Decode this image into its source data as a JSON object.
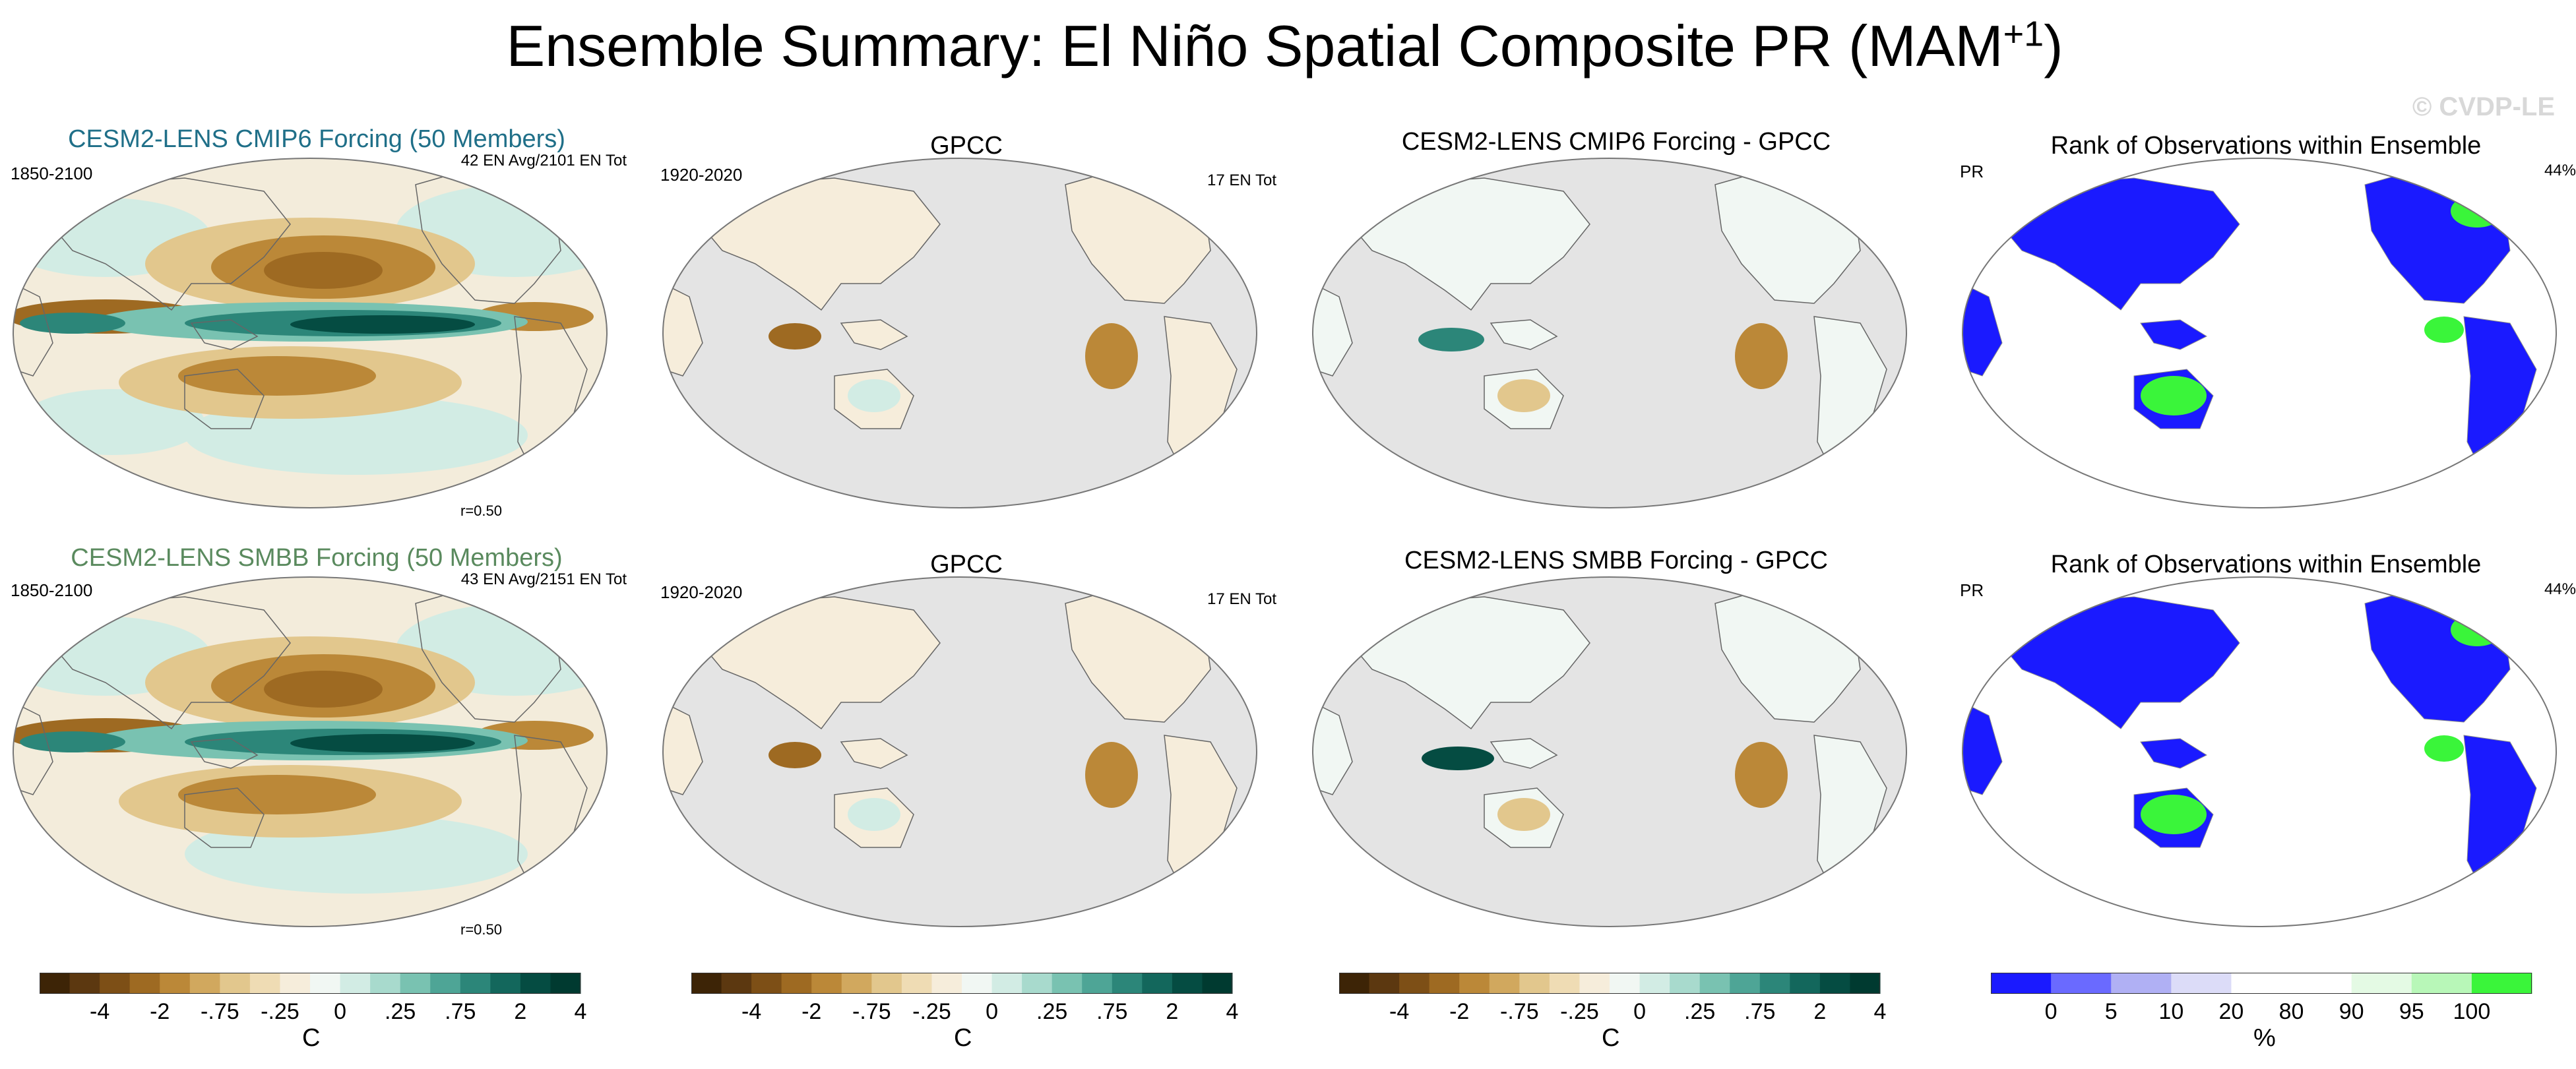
{
  "page_title": "Ensemble Summary: El Niño Spatial Composite PR (MAM",
  "title_superscript": "+1",
  "title_close": ")",
  "watermark": "© CVDP-LE",
  "panels": [
    {
      "title": "CESM2-LENS CMIP6 Forcing (50 Members)",
      "title_color": "#1f6f88",
      "left_label": "1850-2100",
      "right_label": "42 EN Avg/2101 EN Tot",
      "corr": "r=0.50"
    },
    {
      "title": "GPCC",
      "title_color": "#000000",
      "left_label": "1920-2020",
      "right_label": "17 EN Tot"
    },
    {
      "title": "CESM2-LENS CMIP6 Forcing - GPCC",
      "title_color": "#000000",
      "left_label": "",
      "right_label": ""
    },
    {
      "title": "Rank of Observations within Ensemble",
      "title_color": "#000000",
      "left_label": "PR",
      "right_label": "44%"
    },
    {
      "title": "CESM2-LENS SMBB Forcing (50 Members)",
      "title_color": "#5a8a5e",
      "left_label": "1850-2100",
      "right_label": "43 EN Avg/2151 EN Tot",
      "corr": "r=0.50"
    },
    {
      "title": "GPCC",
      "title_color": "#000000",
      "left_label": "1920-2020",
      "right_label": "17 EN Tot"
    },
    {
      "title": "CESM2-LENS SMBB Forcing - GPCC",
      "title_color": "#000000",
      "left_label": "",
      "right_label": ""
    },
    {
      "title": "Rank of Observations within Ensemble",
      "title_color": "#000000",
      "left_label": "PR",
      "right_label": "44%"
    }
  ],
  "colorbars": [
    {
      "unit": "C",
      "ticks": [
        "-4",
        "-2",
        "-.75",
        "-.25",
        "0",
        ".25",
        ".75",
        "2",
        "4"
      ],
      "colors": [
        "#3d2406",
        "#5c3810",
        "#7d4f16",
        "#9e6a22",
        "#bb8838",
        "#d1a85e",
        "#e2c78d",
        "#efdcb4",
        "#f6eddb",
        "#f1f7f3",
        "#d2ece4",
        "#a8dacd",
        "#79c2b1",
        "#4ea596",
        "#2c8679",
        "#13675c",
        "#054c42",
        "#003a30"
      ]
    },
    {
      "unit": "C",
      "ticks": [
        "-4",
        "-2",
        "-.75",
        "-.25",
        "0",
        ".25",
        ".75",
        "2",
        "4"
      ],
      "colors": [
        "#3d2406",
        "#5c3810",
        "#7d4f16",
        "#9e6a22",
        "#bb8838",
        "#d1a85e",
        "#e2c78d",
        "#efdcb4",
        "#f6eddb",
        "#f1f7f3",
        "#d2ece4",
        "#a8dacd",
        "#79c2b1",
        "#4ea596",
        "#2c8679",
        "#13675c",
        "#054c42",
        "#003a30"
      ]
    },
    {
      "unit": "C",
      "ticks": [
        "-4",
        "-2",
        "-.75",
        "-.25",
        "0",
        ".25",
        ".75",
        "2",
        "4"
      ],
      "colors": [
        "#3d2406",
        "#5c3810",
        "#7d4f16",
        "#9e6a22",
        "#bb8838",
        "#d1a85e",
        "#e2c78d",
        "#efdcb4",
        "#f6eddb",
        "#f1f7f3",
        "#d2ece4",
        "#a8dacd",
        "#79c2b1",
        "#4ea596",
        "#2c8679",
        "#13675c",
        "#054c42",
        "#003a30"
      ]
    },
    {
      "unit": "%",
      "ticks": [
        "0",
        "5",
        "10",
        "20",
        "80",
        "90",
        "95",
        "100"
      ],
      "colors": [
        "#1a1aff",
        "#6a6aff",
        "#b0b0f4",
        "#dcdcf8",
        "#ffffff",
        "#ffffff",
        "#e4fae4",
        "#b8f7b8",
        "#3af53a"
      ]
    }
  ],
  "chart_data": [
    {
      "type": "heatmap",
      "title": "CESM2-LENS CMIP6 Forcing (50 Members)",
      "period": "1850-2100",
      "events": "42 EN Avg/2101 EN Tot",
      "pattern_correlation": 0.5,
      "unit": "C",
      "levels": [
        -4,
        -2,
        -0.75,
        -0.25,
        0,
        0.25,
        0.75,
        2,
        4
      ]
    },
    {
      "type": "heatmap",
      "title": "GPCC",
      "period": "1920-2020",
      "events": "17 EN Tot",
      "unit": "C",
      "levels": [
        -4,
        -2,
        -0.75,
        -0.25,
        0,
        0.25,
        0.75,
        2,
        4
      ]
    },
    {
      "type": "heatmap",
      "title": "CESM2-LENS CMIP6 Forcing - GPCC",
      "unit": "C",
      "levels": [
        -4,
        -2,
        -0.75,
        -0.25,
        0,
        0.25,
        0.75,
        2,
        4
      ]
    },
    {
      "type": "heatmap",
      "title": "Rank of Observations within Ensemble",
      "variable": "PR",
      "percent": 44,
      "unit": "%",
      "levels": [
        0,
        5,
        10,
        20,
        80,
        90,
        95,
        100
      ]
    },
    {
      "type": "heatmap",
      "title": "CESM2-LENS SMBB Forcing (50 Members)",
      "period": "1850-2100",
      "events": "43 EN Avg/2151 EN Tot",
      "pattern_correlation": 0.5,
      "unit": "C",
      "levels": [
        -4,
        -2,
        -0.75,
        -0.25,
        0,
        0.25,
        0.75,
        2,
        4
      ]
    },
    {
      "type": "heatmap",
      "title": "GPCC",
      "period": "1920-2020",
      "events": "17 EN Tot",
      "unit": "C",
      "levels": [
        -4,
        -2,
        -0.75,
        -0.25,
        0,
        0.25,
        0.75,
        2,
        4
      ]
    },
    {
      "type": "heatmap",
      "title": "CESM2-LENS SMBB Forcing - GPCC",
      "unit": "C",
      "levels": [
        -4,
        -2,
        -0.75,
        -0.25,
        0,
        0.25,
        0.75,
        2,
        4
      ]
    },
    {
      "type": "heatmap",
      "title": "Rank of Observations within Ensemble",
      "variable": "PR",
      "percent": 44,
      "unit": "%",
      "levels": [
        0,
        5,
        10,
        20,
        80,
        90,
        95,
        100
      ]
    }
  ]
}
